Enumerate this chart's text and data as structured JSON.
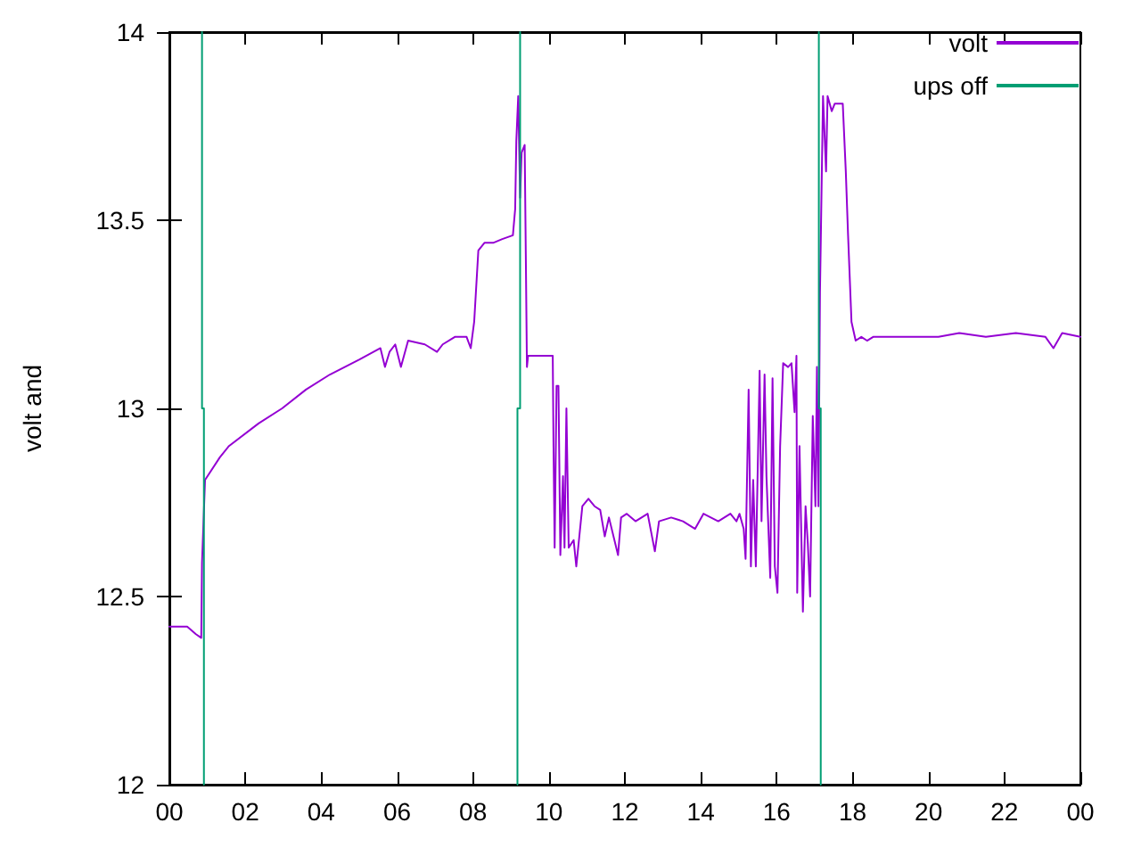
{
  "chart_data": {
    "type": "line",
    "ylabel": "volt and",
    "xlim": [
      0,
      24
    ],
    "xticks": [
      {
        "value": 0,
        "label": "00"
      },
      {
        "value": 2,
        "label": "02"
      },
      {
        "value": 4,
        "label": "04"
      },
      {
        "value": 6,
        "label": "06"
      },
      {
        "value": 8,
        "label": "08"
      },
      {
        "value": 10,
        "label": "10"
      },
      {
        "value": 12,
        "label": "12"
      },
      {
        "value": 14,
        "label": "14"
      },
      {
        "value": 16,
        "label": "16"
      },
      {
        "value": 18,
        "label": "18"
      },
      {
        "value": 20,
        "label": "20"
      },
      {
        "value": 22,
        "label": "22"
      },
      {
        "value": 24,
        "label": "00"
      }
    ],
    "ylim": [
      12,
      14
    ],
    "yticks": [
      12,
      12.5,
      13,
      13.5,
      14
    ],
    "grid": false,
    "legend": "top right",
    "marker": "none",
    "line_style": "solid",
    "series": [
      {
        "name": "volt",
        "color": "#9400d3",
        "x": [
          0,
          0.47,
          0.7,
          0.84,
          0.86,
          0.94,
          1.33,
          1.57,
          2.35,
          2.97,
          3.6,
          4.23,
          5.01,
          5.56,
          5.68,
          5.8,
          5.95,
          6.1,
          6.29,
          6.73,
          7.05,
          7.2,
          7.52,
          7.83,
          7.94,
          8.03,
          8.14,
          8.3,
          8.53,
          8.77,
          9.05,
          9.11,
          9.14,
          9.19,
          9.24,
          9.28,
          9.36,
          9.39,
          9.42,
          9.45,
          10.1,
          10.12,
          10.15,
          10.2,
          10.25,
          10.3,
          10.37,
          10.41,
          10.46,
          10.52,
          10.65,
          10.72,
          10.8,
          10.88,
          11.04,
          11.2,
          11.35,
          11.47,
          11.58,
          11.82,
          11.9,
          12.05,
          12.28,
          12.6,
          12.79,
          12.9,
          13.22,
          13.53,
          13.85,
          14.07,
          14.46,
          14.78,
          14.94,
          15.02,
          15.13,
          15.18,
          15.26,
          15.32,
          15.38,
          15.45,
          15.55,
          15.6,
          15.68,
          15.73,
          15.83,
          15.89,
          15.95,
          16.02,
          16.09,
          16.17,
          16.3,
          16.39,
          16.47,
          16.52,
          16.54,
          16.6,
          16.69,
          16.76,
          16.82,
          16.88,
          16.95,
          17.02,
          17.06,
          17.1,
          17.14,
          17.22,
          17.3,
          17.34,
          17.45,
          17.53,
          17.74,
          17.82,
          17.88,
          17.97,
          18.08,
          18.23,
          18.38,
          18.54,
          19.17,
          19.79,
          20.26,
          20.81,
          21.51,
          22.3,
          23.08,
          23.29,
          23.52,
          24
        ],
        "values": [
          12.42,
          12.42,
          12.4,
          12.39,
          12.59,
          12.81,
          12.87,
          12.9,
          12.96,
          13.0,
          13.05,
          13.09,
          13.13,
          13.16,
          13.11,
          13.15,
          13.17,
          13.11,
          13.18,
          13.17,
          13.15,
          13.17,
          13.19,
          13.19,
          13.16,
          13.23,
          13.42,
          13.44,
          13.44,
          13.45,
          13.46,
          13.53,
          13.71,
          13.83,
          13.56,
          13.68,
          13.7,
          13.41,
          13.11,
          13.14,
          13.14,
          12.9,
          12.63,
          13.06,
          13.06,
          12.61,
          12.82,
          12.63,
          13.0,
          12.63,
          12.65,
          12.58,
          12.66,
          12.74,
          12.76,
          12.74,
          12.73,
          12.66,
          12.71,
          12.61,
          12.71,
          12.72,
          12.7,
          12.72,
          12.62,
          12.7,
          12.71,
          12.7,
          12.68,
          12.72,
          12.7,
          12.72,
          12.7,
          12.72,
          12.68,
          12.6,
          13.05,
          12.58,
          12.81,
          12.58,
          13.1,
          12.7,
          13.09,
          12.82,
          12.55,
          13.08,
          12.58,
          12.51,
          12.9,
          13.12,
          13.11,
          13.12,
          12.99,
          13.14,
          12.51,
          12.9,
          12.46,
          12.74,
          12.64,
          12.5,
          12.98,
          12.74,
          13.11,
          12.74,
          13.31,
          13.83,
          13.63,
          13.83,
          13.79,
          13.81,
          13.81,
          13.63,
          13.46,
          13.23,
          13.18,
          13.19,
          13.18,
          13.19,
          13.19,
          13.19,
          13.19,
          13.2,
          13.19,
          13.2,
          13.19,
          13.16,
          13.2,
          13.19
        ]
      },
      {
        "name": "ups off",
        "color": "#009e73",
        "x": [
          0.86,
          0.86,
          0.91,
          0.91,
          5,
          9.17,
          9.17,
          9.24,
          9.24,
          13,
          17.11,
          17.11,
          17.16,
          17.16
        ],
        "values": [
          14,
          13,
          13,
          12,
          null,
          12,
          13,
          13,
          14,
          null,
          14,
          13,
          13,
          12
        ]
      }
    ]
  }
}
